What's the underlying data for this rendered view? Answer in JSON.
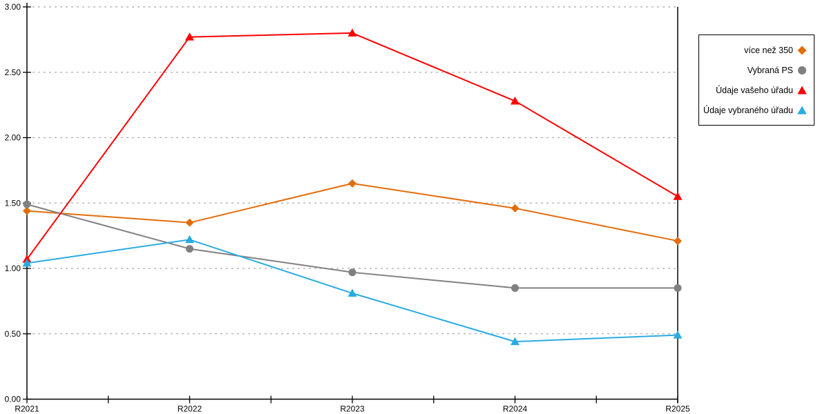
{
  "chart_data": {
    "type": "line",
    "title": "",
    "xlabel": "",
    "ylabel": "",
    "categories": [
      "R2021",
      "R2022",
      "R2023",
      "R2024",
      "R2025"
    ],
    "series": [
      {
        "name": "více než 350",
        "marker": "diamond",
        "color": "#E36C0A",
        "values": [
          1.44,
          1.35,
          1.65,
          1.46,
          1.21
        ]
      },
      {
        "name": "Vybraná PS",
        "marker": "circle",
        "color": "#808080",
        "values": [
          1.49,
          1.15,
          0.97,
          0.85,
          0.85
        ]
      },
      {
        "name": "Údaje vašeho úřadu",
        "marker": "triangle",
        "color": "#FF0000",
        "values": [
          1.07,
          2.77,
          2.8,
          2.28,
          1.55
        ]
      },
      {
        "name": "Údaje vybraného úřadu",
        "marker": "triangle",
        "color": "#29ABE2",
        "values": [
          1.04,
          1.22,
          0.81,
          0.44,
          0.49
        ]
      }
    ],
    "ylim": [
      0,
      3
    ],
    "ytick_step": 0.5,
    "y_tick_labels": [
      "0.00",
      "0.50",
      "1.00",
      "1.50",
      "2.00",
      "2.50",
      "3.00"
    ],
    "grid": true,
    "gridline_style": "dashed",
    "legend_position": "right",
    "colors": {
      "axis": "#000000",
      "gridline": "#ababab",
      "background": "#ffffff"
    }
  }
}
